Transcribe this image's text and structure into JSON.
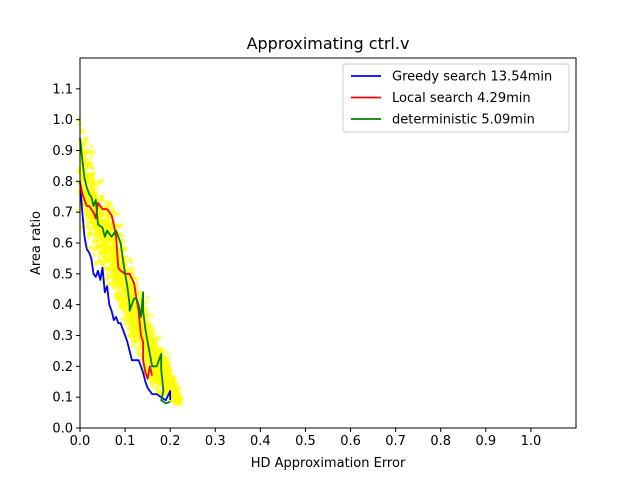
{
  "chart_data": {
    "type": "scatter",
    "title": "Approximating ctrl.v",
    "xlabel": "HD Approximation Error",
    "ylabel": "Area ratio",
    "xlim": [
      0,
      1.1
    ],
    "ylim": [
      0,
      1.2
    ],
    "xticks": [
      "0.0",
      "0.1",
      "0.2",
      "0.3",
      "0.4",
      "0.5",
      "0.6",
      "0.7",
      "0.8",
      "0.9",
      "1.0"
    ],
    "yticks": [
      "0.0",
      "0.1",
      "0.2",
      "0.3",
      "0.4",
      "0.5",
      "0.6",
      "0.7",
      "0.8",
      "0.9",
      "1.0",
      "1.1"
    ],
    "grid": false,
    "legend_position": "top-right",
    "scatter": {
      "color": "#ffff00",
      "band": [
        {
          "x": 0.0,
          "ymin": 0.6,
          "ymax": 1.07
        },
        {
          "x": 0.02,
          "ymin": 0.55,
          "ymax": 0.97
        },
        {
          "x": 0.04,
          "ymin": 0.48,
          "ymax": 0.86
        },
        {
          "x": 0.06,
          "ymin": 0.42,
          "ymax": 0.79
        },
        {
          "x": 0.08,
          "ymin": 0.36,
          "ymax": 0.73
        },
        {
          "x": 0.1,
          "ymin": 0.28,
          "ymax": 0.64
        },
        {
          "x": 0.12,
          "ymin": 0.21,
          "ymax": 0.56
        },
        {
          "x": 0.14,
          "ymin": 0.15,
          "ymax": 0.46
        },
        {
          "x": 0.16,
          "ymin": 0.1,
          "ymax": 0.37
        },
        {
          "x": 0.18,
          "ymin": 0.08,
          "ymax": 0.3
        },
        {
          "x": 0.2,
          "ymin": 0.07,
          "ymax": 0.22
        },
        {
          "x": 0.22,
          "ymin": 0.07,
          "ymax": 0.1
        }
      ]
    },
    "series": [
      {
        "name": "Greedy search 13.54min",
        "color": "#0000ff",
        "points": [
          [
            0,
            0.8
          ],
          [
            0.005,
            0.7
          ],
          [
            0.01,
            0.62
          ],
          [
            0.015,
            0.58
          ],
          [
            0.02,
            0.57
          ],
          [
            0.025,
            0.55
          ],
          [
            0.03,
            0.5
          ],
          [
            0.035,
            0.49
          ],
          [
            0.04,
            0.51
          ],
          [
            0.045,
            0.48
          ],
          [
            0.05,
            0.52
          ],
          [
            0.055,
            0.44
          ],
          [
            0.06,
            0.46
          ],
          [
            0.065,
            0.4
          ],
          [
            0.07,
            0.38
          ],
          [
            0.075,
            0.35
          ],
          [
            0.08,
            0.36
          ],
          [
            0.085,
            0.34
          ],
          [
            0.09,
            0.34
          ],
          [
            0.095,
            0.32
          ],
          [
            0.1,
            0.3
          ],
          [
            0.105,
            0.28
          ],
          [
            0.11,
            0.25
          ],
          [
            0.115,
            0.22
          ],
          [
            0.12,
            0.22
          ],
          [
            0.13,
            0.22
          ],
          [
            0.135,
            0.2
          ],
          [
            0.14,
            0.18
          ],
          [
            0.145,
            0.15
          ],
          [
            0.15,
            0.13
          ],
          [
            0.16,
            0.11
          ],
          [
            0.17,
            0.11
          ],
          [
            0.18,
            0.1
          ],
          [
            0.19,
            0.09
          ],
          [
            0.2,
            0.12
          ],
          [
            0.2,
            0.1
          ],
          [
            0.2,
            0.09
          ]
        ]
      },
      {
        "name": "Local search 4.29min",
        "color": "#ff0000",
        "points": [
          [
            0,
            0.8
          ],
          [
            0.005,
            0.76
          ],
          [
            0.01,
            0.74
          ],
          [
            0.015,
            0.72
          ],
          [
            0.02,
            0.72
          ],
          [
            0.03,
            0.7
          ],
          [
            0.035,
            0.68
          ],
          [
            0.04,
            0.73
          ],
          [
            0.045,
            0.72
          ],
          [
            0.05,
            0.71
          ],
          [
            0.06,
            0.71
          ],
          [
            0.07,
            0.69
          ],
          [
            0.075,
            0.66
          ],
          [
            0.08,
            0.62
          ],
          [
            0.085,
            0.52
          ],
          [
            0.09,
            0.51
          ],
          [
            0.1,
            0.5
          ],
          [
            0.11,
            0.5
          ],
          [
            0.12,
            0.47
          ],
          [
            0.125,
            0.42
          ],
          [
            0.13,
            0.38
          ],
          [
            0.135,
            0.3
          ],
          [
            0.14,
            0.28
          ],
          [
            0.14,
            0.22
          ],
          [
            0.145,
            0.18
          ],
          [
            0.15,
            0.16
          ],
          [
            0.155,
            0.2
          ],
          [
            0.16,
            0.17
          ]
        ]
      },
      {
        "name": "deterministic 5.09min",
        "color": "#008000",
        "points": [
          [
            0,
            0.94
          ],
          [
            0.005,
            0.87
          ],
          [
            0.01,
            0.81
          ],
          [
            0.015,
            0.78
          ],
          [
            0.02,
            0.76
          ],
          [
            0.025,
            0.75
          ],
          [
            0.03,
            0.72
          ],
          [
            0.035,
            0.74
          ],
          [
            0.04,
            0.66
          ],
          [
            0.05,
            0.65
          ],
          [
            0.055,
            0.62
          ],
          [
            0.06,
            0.64
          ],
          [
            0.065,
            0.63
          ],
          [
            0.07,
            0.62
          ],
          [
            0.08,
            0.64
          ],
          [
            0.09,
            0.6
          ],
          [
            0.095,
            0.55
          ],
          [
            0.1,
            0.5
          ],
          [
            0.105,
            0.46
          ],
          [
            0.11,
            0.4
          ],
          [
            0.11,
            0.38
          ],
          [
            0.12,
            0.42
          ],
          [
            0.125,
            0.42
          ],
          [
            0.13,
            0.4
          ],
          [
            0.135,
            0.36
          ],
          [
            0.14,
            0.44
          ],
          [
            0.14,
            0.38
          ],
          [
            0.145,
            0.32
          ],
          [
            0.15,
            0.28
          ],
          [
            0.155,
            0.24
          ],
          [
            0.16,
            0.2
          ],
          [
            0.17,
            0.2
          ],
          [
            0.175,
            0.22
          ],
          [
            0.18,
            0.24
          ],
          [
            0.18,
            0.19
          ],
          [
            0.185,
            0.12
          ],
          [
            0.18,
            0.09
          ],
          [
            0.19,
            0.08
          ],
          [
            0.2,
            0.085
          ]
        ]
      }
    ]
  }
}
